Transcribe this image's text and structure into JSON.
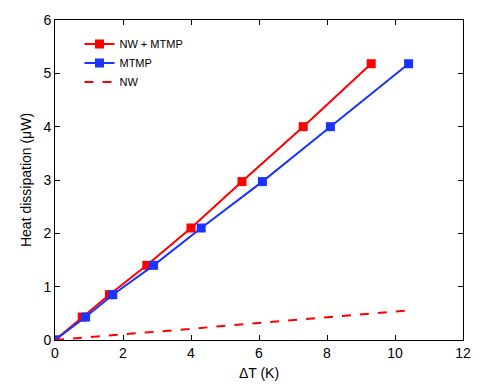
{
  "chart_data": {
    "type": "line",
    "x_label": "ΔT (K)",
    "y_label": "Heat dissipation (μW)",
    "xlim": [
      0,
      12
    ],
    "xticks": [
      0,
      2,
      4,
      6,
      8,
      10,
      12
    ],
    "ylim": [
      0,
      6
    ],
    "yticks": [
      0,
      1,
      2,
      3,
      4,
      5,
      6
    ],
    "grid": false,
    "legend": "upper left",
    "series": [
      {
        "name": "NW + MTMP",
        "color": "#ff0000",
        "marker": "square",
        "line_style": "solid",
        "x": [
          0,
          0.8,
          1.6,
          2.7,
          4.0,
          5.5,
          7.3,
          9.3
        ],
        "values": [
          0,
          0.43,
          0.85,
          1.4,
          2.1,
          2.97,
          4.0,
          5.18
        ]
      },
      {
        "name": "MTMP",
        "color": "#1a33ff",
        "marker": "square",
        "line_style": "solid",
        "x": [
          0,
          0.9,
          1.7,
          2.9,
          4.3,
          6.1,
          8.1,
          10.4
        ],
        "values": [
          0,
          0.43,
          0.85,
          1.4,
          2.1,
          2.97,
          4.0,
          5.18
        ]
      },
      {
        "name": "NW",
        "color": "#ff0000",
        "marker": "none",
        "line_style": "dashed",
        "x": [
          0,
          2,
          4,
          6,
          8,
          10.3
        ],
        "values": [
          0,
          0.1,
          0.21,
          0.32,
          0.43,
          0.55
        ]
      }
    ]
  }
}
